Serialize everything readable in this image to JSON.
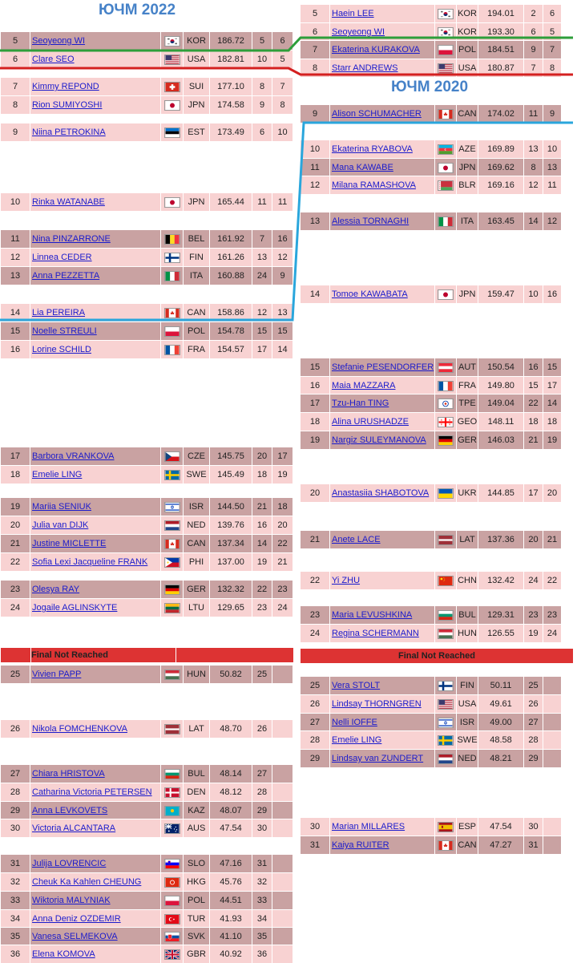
{
  "left_title": "ЮЧМ 2022",
  "right_title": "ЮЧМ 2020",
  "final_not_reached": "Final Not Reached",
  "colors": {
    "green_line": "#2e9e3a",
    "red_line": "#d42020",
    "blue_line": "#2aa6dc",
    "header": "#4682c8"
  },
  "left_rows": [
    {
      "rank": "5",
      "name": "Seoyeong WI",
      "nat": "KOR",
      "score": "186.72",
      "p1": "5",
      "p2": "6",
      "tone": "dark",
      "flag": "kor"
    },
    {
      "rank": "6",
      "name": "Clare SEO",
      "nat": "USA",
      "score": "182.81",
      "p1": "10",
      "p2": "5",
      "tone": "light",
      "flag": "usa"
    },
    {
      "rank": "7",
      "name": "Kimmy REPOND",
      "nat": "SUI",
      "score": "177.10",
      "p1": "8",
      "p2": "7",
      "tone": "light",
      "flag": "sui"
    },
    {
      "rank": "8",
      "name": "Rion SUMIYOSHI",
      "nat": "JPN",
      "score": "174.58",
      "p1": "9",
      "p2": "8",
      "tone": "light",
      "flag": "jpn"
    },
    {
      "rank": "9",
      "name": "Niina PETROKINA",
      "nat": "EST",
      "score": "173.49",
      "p1": "6",
      "p2": "10",
      "tone": "light",
      "flag": "est"
    },
    {
      "rank": "10",
      "name": "Rinka WATANABE",
      "nat": "JPN",
      "score": "165.44",
      "p1": "11",
      "p2": "11",
      "tone": "light",
      "flag": "jpn"
    },
    {
      "rank": "11",
      "name": "Nina PINZARRONE",
      "nat": "BEL",
      "score": "161.92",
      "p1": "7",
      "p2": "16",
      "tone": "dark",
      "flag": "bel"
    },
    {
      "rank": "12",
      "name": "Linnea CEDER",
      "nat": "FIN",
      "score": "161.26",
      "p1": "13",
      "p2": "12",
      "tone": "light",
      "flag": "fin"
    },
    {
      "rank": "13",
      "name": "Anna PEZZETTA",
      "nat": "ITA",
      "score": "160.88",
      "p1": "24",
      "p2": "9",
      "tone": "dark",
      "flag": "ita"
    },
    {
      "rank": "14",
      "name": "Lia PEREIRA",
      "nat": "CAN",
      "score": "158.86",
      "p1": "12",
      "p2": "13",
      "tone": "light",
      "flag": "can"
    },
    {
      "rank": "15",
      "name": "Noelle STREULI",
      "nat": "POL",
      "score": "154.78",
      "p1": "15",
      "p2": "15",
      "tone": "dark",
      "flag": "pol"
    },
    {
      "rank": "16",
      "name": "Lorine SCHILD",
      "nat": "FRA",
      "score": "154.57",
      "p1": "17",
      "p2": "14",
      "tone": "light",
      "flag": "fra"
    },
    {
      "rank": "17",
      "name": "Barbora VRANKOVA",
      "nat": "CZE",
      "score": "145.75",
      "p1": "20",
      "p2": "17",
      "tone": "dark",
      "flag": "cze"
    },
    {
      "rank": "18",
      "name": "Emelie LING",
      "nat": "SWE",
      "score": "145.49",
      "p1": "18",
      "p2": "19",
      "tone": "light",
      "flag": "swe"
    },
    {
      "rank": "19",
      "name": "Mariia SENIUK",
      "nat": "ISR",
      "score": "144.50",
      "p1": "21",
      "p2": "18",
      "tone": "dark",
      "flag": "isr"
    },
    {
      "rank": "20",
      "name": "Julia van DIJK",
      "nat": "NED",
      "score": "139.76",
      "p1": "16",
      "p2": "20",
      "tone": "light",
      "flag": "ned"
    },
    {
      "rank": "21",
      "name": "Justine MICLETTE",
      "nat": "CAN",
      "score": "137.34",
      "p1": "14",
      "p2": "22",
      "tone": "dark",
      "flag": "can"
    },
    {
      "rank": "22",
      "name": "Sofia Lexi Jacqueline FRANK",
      "nat": "PHI",
      "score": "137.00",
      "p1": "19",
      "p2": "21",
      "tone": "light",
      "flag": "phi"
    },
    {
      "rank": "23",
      "name": "Olesya RAY",
      "nat": "GER",
      "score": "132.32",
      "p1": "22",
      "p2": "23",
      "tone": "dark",
      "flag": "ger"
    },
    {
      "rank": "24",
      "name": "Jogaile AGLINSKYTE",
      "nat": "LTU",
      "score": "129.65",
      "p1": "23",
      "p2": "24",
      "tone": "light",
      "flag": "ltu"
    },
    {
      "rank": "25",
      "name": "Vivien PAPP",
      "nat": "HUN",
      "score": "50.82",
      "p1": "25",
      "p2": "",
      "tone": "dark",
      "flag": "hun"
    },
    {
      "rank": "26",
      "name": "Nikola FOMCHENKOVA",
      "nat": "LAT",
      "score": "48.70",
      "p1": "26",
      "p2": "",
      "tone": "light",
      "flag": "lat"
    },
    {
      "rank": "27",
      "name": "Chiara HRISTOVA",
      "nat": "BUL",
      "score": "48.14",
      "p1": "27",
      "p2": "",
      "tone": "dark",
      "flag": "bul"
    },
    {
      "rank": "28",
      "name": "Catharina Victoria PETERSEN",
      "nat": "DEN",
      "score": "48.12",
      "p1": "28",
      "p2": "",
      "tone": "light",
      "flag": "den"
    },
    {
      "rank": "29",
      "name": "Anna LEVKOVETS",
      "nat": "KAZ",
      "score": "48.07",
      "p1": "29",
      "p2": "",
      "tone": "dark",
      "flag": "kaz"
    },
    {
      "rank": "30",
      "name": "Victoria ALCANTARA",
      "nat": "AUS",
      "score": "47.54",
      "p1": "30",
      "p2": "",
      "tone": "light",
      "flag": "aus"
    },
    {
      "rank": "31",
      "name": "Julija LOVRENCIC",
      "nat": "SLO",
      "score": "47.16",
      "p1": "31",
      "p2": "",
      "tone": "dark",
      "flag": "slo"
    },
    {
      "rank": "32",
      "name": "Cheuk Ka Kahlen CHEUNG",
      "nat": "HKG",
      "score": "45.76",
      "p1": "32",
      "p2": "",
      "tone": "light",
      "flag": "hkg"
    },
    {
      "rank": "33",
      "name": "Wiktoria MALYNIAK",
      "nat": "POL",
      "score": "44.51",
      "p1": "33",
      "p2": "",
      "tone": "dark",
      "flag": "pol"
    },
    {
      "rank": "34",
      "name": "Anna Deniz OZDEMIR",
      "nat": "TUR",
      "score": "41.93",
      "p1": "34",
      "p2": "",
      "tone": "light",
      "flag": "tur"
    },
    {
      "rank": "35",
      "name": "Vanesa SELMEKOVA",
      "nat": "SVK",
      "score": "41.10",
      "p1": "35",
      "p2": "",
      "tone": "dark",
      "flag": "svk"
    },
    {
      "rank": "36",
      "name": "Elena KOMOVA",
      "nat": "GBR",
      "score": "40.92",
      "p1": "36",
      "p2": "",
      "tone": "light",
      "flag": "gbr"
    }
  ],
  "right_rows": [
    {
      "rank": "5",
      "name": "Haein LEE",
      "nat": "KOR",
      "score": "194.01",
      "p1": "2",
      "p2": "6",
      "tone": "light",
      "flag": "kor"
    },
    {
      "rank": "6",
      "name": "Seoyeong WI",
      "nat": "KOR",
      "score": "193.30",
      "p1": "6",
      "p2": "5",
      "tone": "light",
      "flag": "kor"
    },
    {
      "rank": "7",
      "name": "Ekaterina KURAKOVA",
      "nat": "POL",
      "score": "184.51",
      "p1": "9",
      "p2": "7",
      "tone": "dark",
      "flag": "pol"
    },
    {
      "rank": "8",
      "name": "Starr ANDREWS",
      "nat": "USA",
      "score": "180.87",
      "p1": "7",
      "p2": "8",
      "tone": "light",
      "flag": "usa"
    },
    {
      "rank": "9",
      "name": "Alison SCHUMACHER",
      "nat": "CAN",
      "score": "174.02",
      "p1": "11",
      "p2": "9",
      "tone": "dark",
      "flag": "can"
    },
    {
      "rank": "10",
      "name": "Ekaterina RYABOVA",
      "nat": "AZE",
      "score": "169.89",
      "p1": "13",
      "p2": "10",
      "tone": "light",
      "flag": "aze"
    },
    {
      "rank": "11",
      "name": "Mana KAWABE",
      "nat": "JPN",
      "score": "169.62",
      "p1": "8",
      "p2": "13",
      "tone": "dark",
      "flag": "jpn"
    },
    {
      "rank": "12",
      "name": "Milana RAMASHOVA",
      "nat": "BLR",
      "score": "169.16",
      "p1": "12",
      "p2": "11",
      "tone": "light",
      "flag": "blr"
    },
    {
      "rank": "13",
      "name": "Alessia TORNAGHI",
      "nat": "ITA",
      "score": "163.45",
      "p1": "14",
      "p2": "12",
      "tone": "dark",
      "flag": "ita"
    },
    {
      "rank": "14",
      "name": "Tomoe KAWABATA",
      "nat": "JPN",
      "score": "159.47",
      "p1": "10",
      "p2": "16",
      "tone": "light",
      "flag": "jpn"
    },
    {
      "rank": "15",
      "name": "Stefanie PESENDORFER",
      "nat": "AUT",
      "score": "150.54",
      "p1": "16",
      "p2": "15",
      "tone": "dark",
      "flag": "aut"
    },
    {
      "rank": "16",
      "name": "Maia MAZZARA",
      "nat": "FRA",
      "score": "149.80",
      "p1": "15",
      "p2": "17",
      "tone": "light",
      "flag": "fra"
    },
    {
      "rank": "17",
      "name": "Tzu-Han TING",
      "nat": "TPE",
      "score": "149.04",
      "p1": "22",
      "p2": "14",
      "tone": "dark",
      "flag": "tpe"
    },
    {
      "rank": "18",
      "name": "Alina URUSHADZE",
      "nat": "GEO",
      "score": "148.11",
      "p1": "18",
      "p2": "18",
      "tone": "light",
      "flag": "geo"
    },
    {
      "rank": "19",
      "name": "Nargiz SULEYMANOVA",
      "nat": "GER",
      "score": "146.03",
      "p1": "21",
      "p2": "19",
      "tone": "dark",
      "flag": "ger"
    },
    {
      "rank": "20",
      "name": "Anastasiia SHABOTOVA",
      "nat": "UKR",
      "score": "144.85",
      "p1": "17",
      "p2": "20",
      "tone": "light",
      "flag": "ukr"
    },
    {
      "rank": "21",
      "name": "Anete LACE",
      "nat": "LAT",
      "score": "137.36",
      "p1": "20",
      "p2": "21",
      "tone": "dark",
      "flag": "lat"
    },
    {
      "rank": "22",
      "name": "Yi ZHU",
      "nat": "CHN",
      "score": "132.42",
      "p1": "24",
      "p2": "22",
      "tone": "light",
      "flag": "chn"
    },
    {
      "rank": "23",
      "name": "Maria LEVUSHKINA",
      "nat": "BUL",
      "score": "129.31",
      "p1": "23",
      "p2": "23",
      "tone": "dark",
      "flag": "bul"
    },
    {
      "rank": "24",
      "name": "Regina SCHERMANN",
      "nat": "HUN",
      "score": "126.55",
      "p1": "19",
      "p2": "24",
      "tone": "light",
      "flag": "hun"
    },
    {
      "rank": "25",
      "name": "Vera STOLT",
      "nat": "FIN",
      "score": "50.11",
      "p1": "25",
      "p2": "",
      "tone": "dark",
      "flag": "fin"
    },
    {
      "rank": "26",
      "name": "Lindsay THORNGREN",
      "nat": "USA",
      "score": "49.61",
      "p1": "26",
      "p2": "",
      "tone": "light",
      "flag": "usa"
    },
    {
      "rank": "27",
      "name": "Nelli IOFFE",
      "nat": "ISR",
      "score": "49.00",
      "p1": "27",
      "p2": "",
      "tone": "dark",
      "flag": "isr"
    },
    {
      "rank": "28",
      "name": "Emelie LING",
      "nat": "SWE",
      "score": "48.58",
      "p1": "28",
      "p2": "",
      "tone": "light",
      "flag": "swe"
    },
    {
      "rank": "29",
      "name": "Lindsay van ZUNDERT",
      "nat": "NED",
      "score": "48.21",
      "p1": "29",
      "p2": "",
      "tone": "dark",
      "flag": "ned"
    },
    {
      "rank": "30",
      "name": "Marian MILLARES",
      "nat": "ESP",
      "score": "47.54",
      "p1": "30",
      "p2": "",
      "tone": "light",
      "flag": "esp"
    },
    {
      "rank": "31",
      "name": "Kaiya RUITER",
      "nat": "CAN",
      "score": "47.27",
      "p1": "31",
      "p2": "",
      "tone": "dark",
      "flag": "can"
    }
  ]
}
